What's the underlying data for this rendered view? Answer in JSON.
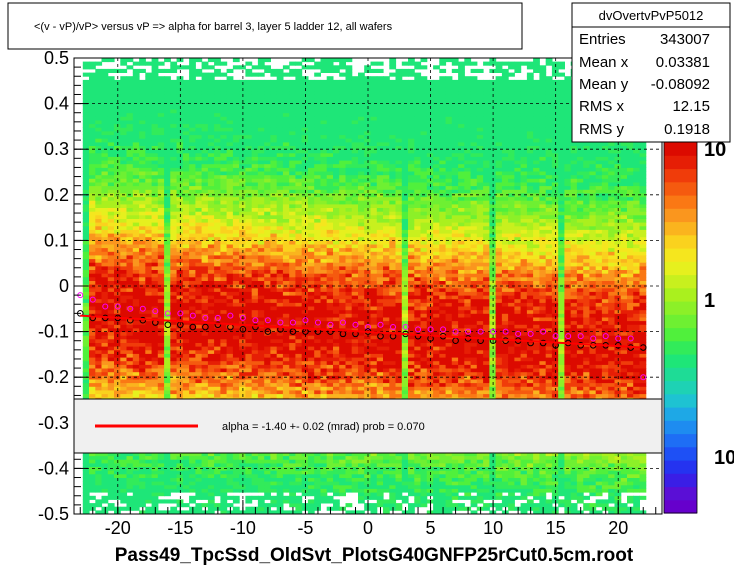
{
  "title": "<(v - vP)/vP> versus  vP => alpha for barrel 3, layer 5 ladder 12, all wafers",
  "xlabel": "Pass49_TpcSsd_OldSvt_PlotsG40GNFP25rCut0.5cm.root",
  "stats": {
    "name": "dvOvertvPvP5012",
    "rows": [
      {
        "label": "Entries",
        "value": "343007"
      },
      {
        "label": "Mean x",
        "value": "0.03381"
      },
      {
        "label": "Mean y",
        "value": "-0.08092"
      },
      {
        "label": "RMS x",
        "value": "12.15"
      },
      {
        "label": "RMS y",
        "value": "0.1918"
      }
    ]
  },
  "legend": {
    "text": "alpha =   -1.40 +-  0.02 (mrad) prob = 0.070",
    "line_color": "#ff0000"
  },
  "palette": {
    "labels": [
      "10",
      "1",
      "10"
    ]
  },
  "colors": {
    "fit_line": "#ff0000",
    "profile_markers": "#000000",
    "profile2_markers": "#ff00ff",
    "grid": "#000000"
  },
  "chart_data": {
    "type": "heatmap",
    "title": "<(v - vP)/vP> versus  vP => alpha for barrel 3, layer 5 ladder 12, all wafers",
    "xlabel": "Pass49_TpcSsd_OldSvt_PlotsG40GNFP25rCut0.5cm.root",
    "ylabel": "",
    "xlim": [
      -23.5,
      23.5
    ],
    "ylim": [
      -0.5,
      0.5
    ],
    "x_ticks": [
      "-20",
      "-15",
      "-10",
      "-5",
      "0",
      "5",
      "10",
      "15",
      "20"
    ],
    "y_ticks": [
      "-0.5",
      "-0.4",
      "-0.3",
      "-0.2",
      "-0.1",
      "0",
      "0.1",
      "0.2",
      "0.3",
      "0.4",
      "0.5"
    ],
    "grid": true,
    "log_z": true,
    "fit": {
      "x": [
        -23,
        22
      ],
      "y": [
        -0.065,
        -0.135
      ]
    },
    "profile": {
      "x": [
        -23,
        -22,
        -21,
        -20,
        -19,
        -18,
        -17,
        -16,
        -15,
        -14,
        -13,
        -12,
        -11,
        -10,
        -9,
        -8,
        -7,
        -6,
        -5,
        -4,
        -3,
        -2,
        -1,
        0,
        1,
        2,
        3,
        4,
        5,
        6,
        7,
        8,
        9,
        10,
        11,
        12,
        13,
        14,
        15,
        16,
        17,
        18,
        19,
        20,
        21,
        22
      ],
      "y": [
        -0.06,
        -0.07,
        -0.07,
        -0.07,
        -0.075,
        -0.075,
        -0.08,
        -0.085,
        -0.085,
        -0.09,
        -0.09,
        -0.085,
        -0.09,
        -0.095,
        -0.09,
        -0.1,
        -0.095,
        -0.1,
        -0.1,
        -0.1,
        -0.1,
        -0.105,
        -0.105,
        -0.1,
        -0.11,
        -0.11,
        -0.105,
        -0.11,
        -0.115,
        -0.11,
        -0.12,
        -0.115,
        -0.12,
        -0.12,
        -0.12,
        -0.12,
        -0.125,
        -0.125,
        -0.13,
        -0.125,
        -0.13,
        -0.13,
        -0.13,
        -0.13,
        -0.135,
        -0.135
      ]
    },
    "profile2": {
      "x": [
        -23,
        -22,
        -21,
        -20,
        -19,
        -18,
        -17,
        -16,
        -15,
        -14,
        -13,
        -12,
        -11,
        -10,
        -9,
        -8,
        -7,
        -6,
        -5,
        -4,
        -3,
        -2,
        -1,
        0,
        1,
        2,
        3,
        4,
        5,
        6,
        7,
        8,
        9,
        10,
        11,
        12,
        13,
        14,
        15,
        16,
        17,
        18,
        19,
        20,
        21,
        22
      ],
      "y": [
        -0.02,
        -0.03,
        -0.045,
        -0.045,
        -0.05,
        -0.05,
        -0.055,
        -0.06,
        -0.06,
        -0.065,
        -0.07,
        -0.07,
        -0.065,
        -0.07,
        -0.075,
        -0.075,
        -0.08,
        -0.08,
        -0.075,
        -0.08,
        -0.085,
        -0.08,
        -0.085,
        -0.09,
        -0.085,
        -0.09,
        -0.09,
        -0.095,
        -0.095,
        -0.095,
        -0.1,
        -0.1,
        -0.1,
        -0.1,
        -0.1,
        -0.105,
        -0.105,
        -0.1,
        -0.11,
        -0.11,
        -0.11,
        -0.115,
        -0.11,
        -0.115,
        -0.115,
        -0.2
      ]
    }
  }
}
